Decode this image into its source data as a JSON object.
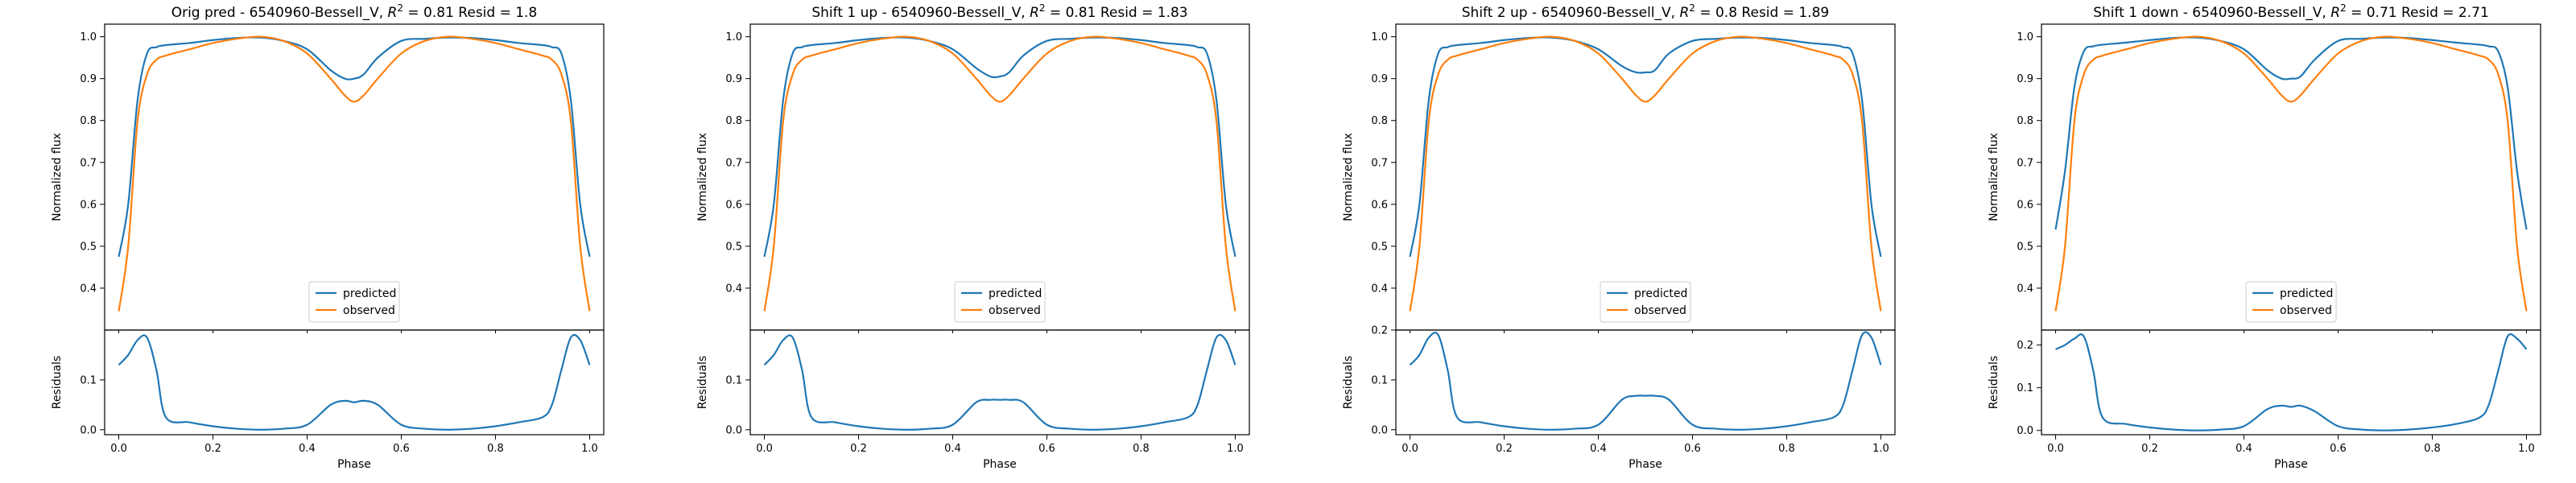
{
  "figure": {
    "panels": [
      {
        "title_prefix": "Orig pred - 6540960-Bessell_V, ",
        "r2_value": "0.81",
        "resid_text": " Resid = 1.8"
      },
      {
        "title_prefix": "Shift 1 up - 6540960-Bessell_V, ",
        "r2_value": "0.81",
        "resid_text": " Resid = 1.83"
      },
      {
        "title_prefix": "Shift 2 up - 6540960-Bessell_V, ",
        "r2_value": "0.8",
        "resid_text": " Resid = 1.89"
      },
      {
        "title_prefix": "Shift 1 down - 6540960-Bessell_V, ",
        "r2_value": "0.71",
        "resid_text": " Resid = 2.71"
      }
    ]
  },
  "chart_data": [
    {
      "type": "line",
      "title": "Orig pred - 6540960-Bessell_V, R^2 = 0.81 Resid = 1.8",
      "xlabel": "Phase",
      "ylabel": "Normalized flux",
      "resid_ylabel": "Residuals",
      "xlim": [
        -0.03,
        1.03
      ],
      "ylim": [
        0.3,
        1.03
      ],
      "resid_ylim": [
        -0.01,
        0.2
      ],
      "xticks": [
        "0.0",
        "0.2",
        "0.4",
        "0.6",
        "0.8",
        "1.0"
      ],
      "yticks": [
        "0.4",
        "0.5",
        "0.6",
        "0.7",
        "0.8",
        "0.9",
        "1.0"
      ],
      "resid_yticks": [
        "0.0",
        "0.1"
      ],
      "legend": {
        "location": "lower center",
        "entries": [
          "predicted",
          "observed"
        ]
      },
      "colors": {
        "predicted": "#1f77b4",
        "observed": "#ff7f0e"
      },
      "x": [
        0.0,
        0.02,
        0.04,
        0.06,
        0.08,
        0.1,
        0.15,
        0.2,
        0.25,
        0.3,
        0.35,
        0.4,
        0.45,
        0.48,
        0.5,
        0.52,
        0.55,
        0.6,
        0.65,
        0.7,
        0.75,
        0.8,
        0.85,
        0.9,
        0.92,
        0.94,
        0.96,
        0.98,
        1.0
      ],
      "series": [
        {
          "name": "predicted",
          "values": [
            0.475,
            0.6,
            0.85,
            0.96,
            0.975,
            0.98,
            0.985,
            0.992,
            0.997,
            0.998,
            0.99,
            0.97,
            0.92,
            0.9,
            0.9,
            0.91,
            0.95,
            0.99,
            0.995,
            0.998,
            0.997,
            0.992,
            0.985,
            0.98,
            0.975,
            0.96,
            0.85,
            0.6,
            0.475
          ]
        },
        {
          "name": "observed",
          "values": [
            0.345,
            0.5,
            0.8,
            0.91,
            0.945,
            0.955,
            0.97,
            0.985,
            0.995,
            1.0,
            0.99,
            0.96,
            0.9,
            0.86,
            0.845,
            0.86,
            0.9,
            0.96,
            0.99,
            1.0,
            0.995,
            0.985,
            0.97,
            0.955,
            0.945,
            0.91,
            0.8,
            0.5,
            0.345
          ]
        }
      ],
      "residuals": [
        0.13,
        0.15,
        0.18,
        0.185,
        0.12,
        0.025,
        0.015,
        0.007,
        0.002,
        0.0,
        0.002,
        0.01,
        0.05,
        0.058,
        0.055,
        0.058,
        0.05,
        0.01,
        0.002,
        0.0,
        0.002,
        0.007,
        0.015,
        0.025,
        0.05,
        0.12,
        0.185,
        0.18,
        0.13
      ]
    },
    {
      "type": "line",
      "title": "Shift 1 up - 6540960-Bessell_V, R^2 = 0.81 Resid = 1.83",
      "xlabel": "Phase",
      "ylabel": "Normalized flux",
      "resid_ylabel": "Residuals",
      "xlim": [
        -0.03,
        1.03
      ],
      "ylim": [
        0.3,
        1.03
      ],
      "resid_ylim": [
        -0.01,
        0.2
      ],
      "xticks": [
        "0.0",
        "0.2",
        "0.4",
        "0.6",
        "0.8",
        "1.0"
      ],
      "yticks": [
        "0.4",
        "0.5",
        "0.6",
        "0.7",
        "0.8",
        "0.9",
        "1.0"
      ],
      "resid_yticks": [
        "0.0",
        "0.1"
      ],
      "legend": {
        "location": "lower center",
        "entries": [
          "predicted",
          "observed"
        ]
      },
      "colors": {
        "predicted": "#1f77b4",
        "observed": "#ff7f0e"
      },
      "x": [
        0.0,
        0.02,
        0.04,
        0.06,
        0.08,
        0.1,
        0.15,
        0.2,
        0.25,
        0.3,
        0.35,
        0.4,
        0.45,
        0.48,
        0.5,
        0.52,
        0.55,
        0.6,
        0.65,
        0.7,
        0.75,
        0.8,
        0.85,
        0.9,
        0.92,
        0.94,
        0.96,
        0.98,
        1.0
      ],
      "series": [
        {
          "name": "predicted",
          "values": [
            0.475,
            0.6,
            0.85,
            0.96,
            0.975,
            0.98,
            0.985,
            0.992,
            0.997,
            0.998,
            0.99,
            0.97,
            0.925,
            0.905,
            0.905,
            0.915,
            0.955,
            0.99,
            0.995,
            0.998,
            0.997,
            0.992,
            0.985,
            0.98,
            0.975,
            0.96,
            0.85,
            0.6,
            0.475
          ]
        },
        {
          "name": "observed",
          "values": [
            0.345,
            0.5,
            0.8,
            0.91,
            0.945,
            0.955,
            0.97,
            0.985,
            0.995,
            1.0,
            0.99,
            0.96,
            0.9,
            0.86,
            0.845,
            0.86,
            0.9,
            0.96,
            0.99,
            1.0,
            0.995,
            0.985,
            0.97,
            0.955,
            0.945,
            0.91,
            0.8,
            0.5,
            0.345
          ]
        }
      ],
      "residuals": [
        0.13,
        0.15,
        0.18,
        0.185,
        0.12,
        0.025,
        0.015,
        0.007,
        0.002,
        0.0,
        0.002,
        0.01,
        0.055,
        0.06,
        0.06,
        0.06,
        0.055,
        0.01,
        0.002,
        0.0,
        0.002,
        0.007,
        0.015,
        0.025,
        0.05,
        0.12,
        0.185,
        0.18,
        0.13
      ]
    },
    {
      "type": "line",
      "title": "Shift 2 up - 6540960-Bessell_V, R^2 = 0.8 Resid = 1.89",
      "xlabel": "Phase",
      "ylabel": "Normalized flux",
      "resid_ylabel": "Residuals",
      "xlim": [
        -0.03,
        1.03
      ],
      "ylim": [
        0.3,
        1.03
      ],
      "resid_ylim": [
        -0.01,
        0.2
      ],
      "xticks": [
        "0.0",
        "0.2",
        "0.4",
        "0.6",
        "0.8",
        "1.0"
      ],
      "yticks": [
        "0.4",
        "0.5",
        "0.6",
        "0.7",
        "0.8",
        "0.9",
        "1.0"
      ],
      "resid_yticks": [
        "0.0",
        "0.1",
        "0.2"
      ],
      "legend": {
        "location": "lower center",
        "entries": [
          "predicted",
          "observed"
        ]
      },
      "colors": {
        "predicted": "#1f77b4",
        "observed": "#ff7f0e"
      },
      "x": [
        0.0,
        0.02,
        0.04,
        0.06,
        0.08,
        0.1,
        0.15,
        0.2,
        0.25,
        0.3,
        0.35,
        0.4,
        0.45,
        0.48,
        0.5,
        0.52,
        0.55,
        0.6,
        0.65,
        0.7,
        0.75,
        0.8,
        0.85,
        0.9,
        0.92,
        0.94,
        0.96,
        0.98,
        1.0
      ],
      "series": [
        {
          "name": "predicted",
          "values": [
            0.475,
            0.6,
            0.85,
            0.96,
            0.975,
            0.98,
            0.985,
            0.992,
            0.997,
            0.998,
            0.99,
            0.97,
            0.93,
            0.915,
            0.915,
            0.92,
            0.96,
            0.99,
            0.995,
            0.998,
            0.997,
            0.992,
            0.985,
            0.98,
            0.975,
            0.96,
            0.85,
            0.6,
            0.475
          ]
        },
        {
          "name": "observed",
          "values": [
            0.345,
            0.5,
            0.8,
            0.91,
            0.945,
            0.955,
            0.97,
            0.985,
            0.995,
            1.0,
            0.99,
            0.96,
            0.9,
            0.86,
            0.845,
            0.86,
            0.9,
            0.96,
            0.99,
            1.0,
            0.995,
            0.985,
            0.97,
            0.955,
            0.945,
            0.91,
            0.8,
            0.5,
            0.345
          ]
        }
      ],
      "residuals": [
        0.13,
        0.15,
        0.185,
        0.19,
        0.12,
        0.025,
        0.015,
        0.007,
        0.002,
        0.0,
        0.002,
        0.01,
        0.06,
        0.068,
        0.068,
        0.068,
        0.06,
        0.01,
        0.002,
        0.0,
        0.002,
        0.007,
        0.015,
        0.025,
        0.05,
        0.12,
        0.19,
        0.185,
        0.13
      ]
    },
    {
      "type": "line",
      "title": "Shift 1 down - 6540960-Bessell_V, R^2 = 0.71 Resid = 2.71",
      "xlabel": "Phase",
      "ylabel": "Normalized flux",
      "resid_ylabel": "Residuals",
      "xlim": [
        -0.03,
        1.03
      ],
      "ylim": [
        0.3,
        1.03
      ],
      "resid_ylim": [
        -0.01,
        0.235
      ],
      "xticks": [
        "0.0",
        "0.2",
        "0.4",
        "0.6",
        "0.8",
        "1.0"
      ],
      "yticks": [
        "0.4",
        "0.5",
        "0.6",
        "0.7",
        "0.8",
        "0.9",
        "1.0"
      ],
      "resid_yticks": [
        "0.0",
        "0.1",
        "0.2"
      ],
      "legend": {
        "location": "lower center",
        "entries": [
          "predicted",
          "observed"
        ]
      },
      "colors": {
        "predicted": "#1f77b4",
        "observed": "#ff7f0e"
      },
      "x": [
        0.0,
        0.02,
        0.04,
        0.06,
        0.08,
        0.1,
        0.15,
        0.2,
        0.25,
        0.3,
        0.35,
        0.4,
        0.45,
        0.48,
        0.5,
        0.52,
        0.55,
        0.6,
        0.65,
        0.7,
        0.75,
        0.8,
        0.85,
        0.9,
        0.92,
        0.94,
        0.96,
        0.98,
        1.0
      ],
      "series": [
        {
          "name": "predicted",
          "values": [
            0.54,
            0.68,
            0.88,
            0.965,
            0.977,
            0.981,
            0.986,
            0.992,
            0.997,
            0.998,
            0.99,
            0.97,
            0.92,
            0.9,
            0.9,
            0.905,
            0.945,
            0.99,
            0.995,
            0.998,
            0.997,
            0.992,
            0.986,
            0.981,
            0.977,
            0.965,
            0.88,
            0.68,
            0.54
          ]
        },
        {
          "name": "observed",
          "values": [
            0.345,
            0.5,
            0.8,
            0.91,
            0.945,
            0.955,
            0.97,
            0.985,
            0.995,
            1.0,
            0.99,
            0.96,
            0.9,
            0.86,
            0.845,
            0.86,
            0.9,
            0.96,
            0.99,
            1.0,
            0.995,
            0.985,
            0.97,
            0.955,
            0.945,
            0.91,
            0.8,
            0.5,
            0.345
          ]
        }
      ],
      "residuals": [
        0.19,
        0.2,
        0.215,
        0.22,
        0.14,
        0.03,
        0.015,
        0.007,
        0.002,
        0.0,
        0.002,
        0.01,
        0.05,
        0.058,
        0.055,
        0.058,
        0.045,
        0.01,
        0.002,
        0.0,
        0.002,
        0.007,
        0.015,
        0.03,
        0.06,
        0.14,
        0.22,
        0.215,
        0.19
      ]
    }
  ]
}
